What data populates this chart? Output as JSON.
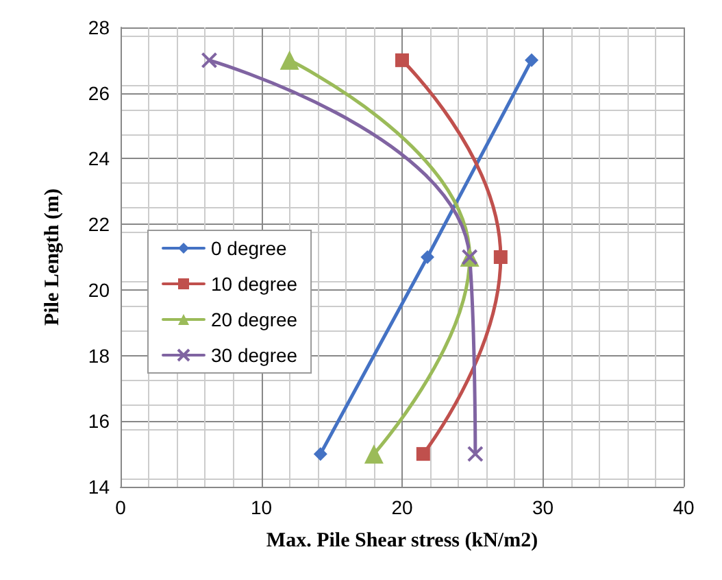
{
  "chart_data": {
    "type": "line",
    "xlabel": "Max. Pile Shear stress (kN/m2)",
    "ylabel": "Pile Length (m)",
    "xlim": [
      0,
      40
    ],
    "xticks": [
      0,
      10,
      20,
      30,
      40
    ],
    "ylim": [
      14,
      28
    ],
    "yticks": [
      14,
      16,
      18,
      20,
      22,
      24,
      26,
      28
    ],
    "grid": true,
    "legend": "left",
    "line_style": "solid",
    "series": [
      {
        "name": "0 degree",
        "color": "#4472c4",
        "marker": "diamond",
        "x": [
          14.2,
          21.8,
          29.2
        ],
        "values": [
          15,
          21,
          27
        ]
      },
      {
        "name": "10 degree",
        "color": "#c0504d",
        "marker": "square",
        "x": [
          21.5,
          27,
          20
        ],
        "values": [
          15,
          21,
          27
        ]
      },
      {
        "name": "20 degree",
        "color": "#9bbb59",
        "marker": "triangle",
        "x": [
          18,
          24.8,
          12
        ],
        "values": [
          15,
          21,
          27
        ]
      },
      {
        "name": "30 degree",
        "color": "#8064a2",
        "marker": "cross",
        "x": [
          25.2,
          24.8,
          6.3
        ],
        "values": [
          15,
          21,
          27
        ]
      }
    ]
  }
}
